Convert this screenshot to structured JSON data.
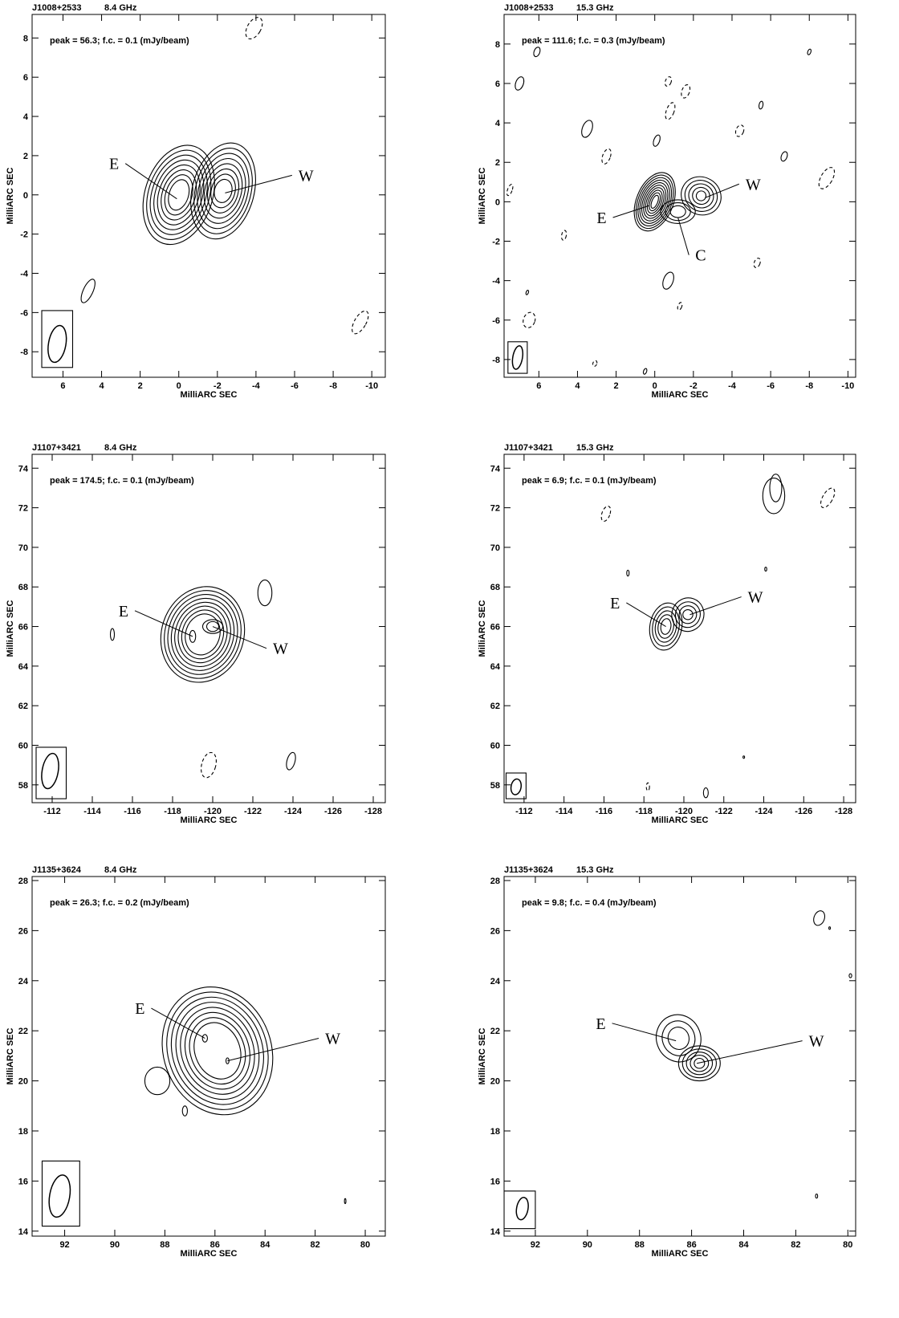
{
  "chart_data": [
    {
      "type": "contour",
      "title": "J1008+2533",
      "subtitle": "8.4  GHz",
      "annotation": "peak = 56.3;  f.c. = 0.1  (mJy/beam)",
      "xlabel": "MilliARC SEC",
      "ylabel": "MilliARC SEC",
      "xlim": [
        7.6,
        -10.7
      ],
      "ylim": [
        -9.3,
        9.2
      ],
      "xticks": [
        6,
        4,
        2,
        0,
        -2,
        -4,
        -6,
        -8,
        -10
      ],
      "yticks": [
        -8,
        -6,
        -4,
        -2,
        0,
        2,
        4,
        6,
        8
      ],
      "labels": [
        "E",
        "W"
      ]
    },
    {
      "type": "contour",
      "title": "J1008+2533",
      "subtitle": "15.3  GHz",
      "annotation": "peak = 111.6;  f.c. = 0.3  (mJy/beam)",
      "xlabel": "MilliARC SEC",
      "ylabel": "MilliARC SEC",
      "xlim": [
        7.8,
        -10.4
      ],
      "ylim": [
        -8.9,
        9.5
      ],
      "xticks": [
        6,
        4,
        2,
        0,
        -2,
        -4,
        -6,
        -8,
        -10
      ],
      "yticks": [
        -8,
        -6,
        -4,
        -2,
        0,
        2,
        4,
        6,
        8
      ],
      "labels": [
        "E",
        "W",
        "C"
      ]
    },
    {
      "type": "contour",
      "title": "J1107+3421",
      "subtitle": "8.4  GHz",
      "annotation": "peak = 174.5;  f.c. = 0.1  (mJy/beam)",
      "xlabel": "MilliARC SEC",
      "ylabel": "MilliARC SEC",
      "xlim": [
        -111.0,
        -128.6
      ],
      "ylim": [
        57.1,
        74.7
      ],
      "xticks": [
        -112,
        -114,
        -116,
        -118,
        -120,
        -122,
        -124,
        -126,
        -128
      ],
      "yticks": [
        58,
        60,
        62,
        64,
        66,
        68,
        70,
        72,
        74
      ],
      "labels": [
        "E",
        "W"
      ]
    },
    {
      "type": "contour",
      "title": "J1107+3421",
      "subtitle": "15.3  GHz",
      "annotation": "peak = 6.9;  f.c. = 0.1  (mJy/beam)",
      "xlabel": "MilliARC SEC",
      "ylabel": "MilliARC SEC",
      "xlim": [
        -111.0,
        -128.6
      ],
      "ylim": [
        57.1,
        74.7
      ],
      "xticks": [
        -112,
        -114,
        -116,
        -118,
        -120,
        -122,
        -124,
        -126,
        -128
      ],
      "yticks": [
        58,
        60,
        62,
        64,
        66,
        68,
        70,
        72,
        74
      ],
      "labels": [
        "E",
        "W"
      ]
    },
    {
      "type": "contour",
      "title": "J1135+3624",
      "subtitle": "8.4  GHz",
      "annotation": "peak = 26.3;  f.c. = 0.2  (mJy/beam)",
      "xlabel": "MilliARC SEC",
      "ylabel": "MilliARC SEC",
      "xlim": [
        93.3,
        79.2
      ],
      "ylim": [
        13.8,
        28.16
      ],
      "xticks": [
        92,
        90,
        88,
        86,
        84,
        82,
        80
      ],
      "yticks": [
        14,
        16,
        18,
        20,
        22,
        24,
        26,
        28
      ],
      "labels": [
        "E",
        "W"
      ]
    },
    {
      "type": "contour",
      "title": "J1135+3624",
      "subtitle": "15.3  GHz",
      "annotation": "peak = 9.8;  f.c. = 0.4  (mJy/beam)",
      "xlabel": "MilliARC SEC",
      "ylabel": "MilliARC SEC",
      "xlim": [
        93.2,
        79.7
      ],
      "ylim": [
        13.8,
        28.16
      ],
      "xticks": [
        92,
        90,
        88,
        86,
        84,
        82,
        80
      ],
      "yticks": [
        14,
        16,
        18,
        20,
        22,
        24,
        26,
        28
      ],
      "labels": [
        "E",
        "W"
      ]
    }
  ]
}
